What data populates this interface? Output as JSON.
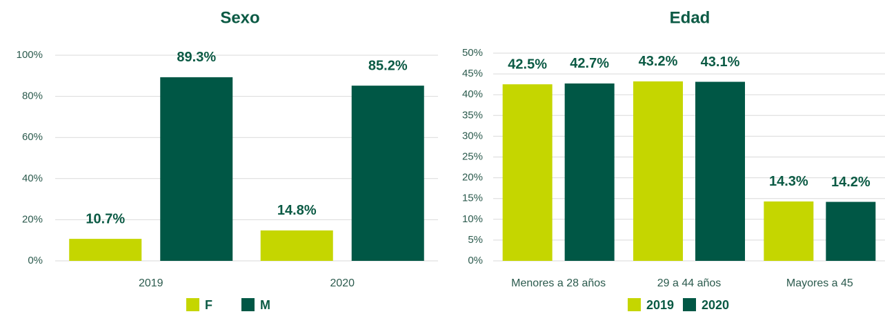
{
  "chart_data": [
    {
      "type": "bar",
      "title": "Sexo",
      "categories": [
        "2019",
        "2020"
      ],
      "series": [
        {
          "name": "F",
          "color": "#c5d600",
          "values": [
            10.7,
            14.8
          ],
          "value_labels": [
            "10.7%",
            "14.8%"
          ]
        },
        {
          "name": "M",
          "color": "#005745",
          "values": [
            89.3,
            85.2
          ],
          "value_labels": [
            "89.3%",
            "85.2%"
          ]
        }
      ],
      "ylim": [
        0,
        100
      ],
      "yticks": [
        {
          "value": 0,
          "label": "0%"
        },
        {
          "value": 20,
          "label": "20%"
        },
        {
          "value": 40,
          "label": "40%"
        },
        {
          "value": 60,
          "label": "60%"
        },
        {
          "value": 80,
          "label": "80%"
        },
        {
          "value": 100,
          "label": "100%"
        }
      ],
      "grid": true,
      "legend": "bottom"
    },
    {
      "type": "bar",
      "title": "Edad",
      "categories": [
        "Menores a 28 años",
        "29 a 44 años",
        "Mayores a 45"
      ],
      "series": [
        {
          "name": "2019",
          "color": "#c5d600",
          "values": [
            42.5,
            43.2,
            14.3
          ],
          "value_labels": [
            "42.5%",
            "43.2%",
            "14.3%"
          ]
        },
        {
          "name": "2020",
          "color": "#005745",
          "values": [
            42.7,
            43.1,
            14.2
          ],
          "value_labels": [
            "42.7%",
            "43.1%",
            "14.2%"
          ]
        }
      ],
      "ylim": [
        0,
        50
      ],
      "yticks": [
        {
          "value": 0,
          "label": "0%"
        },
        {
          "value": 5,
          "label": "5%"
        },
        {
          "value": 10,
          "label": "10%"
        },
        {
          "value": 15,
          "label": "15%"
        },
        {
          "value": 20,
          "label": "20%"
        },
        {
          "value": 25,
          "label": "25%"
        },
        {
          "value": 30,
          "label": "30%"
        },
        {
          "value": 35,
          "label": "35%"
        },
        {
          "value": 40,
          "label": "40%"
        },
        {
          "value": 45,
          "label": "45%"
        },
        {
          "value": 50,
          "label": "50%"
        }
      ],
      "grid": true,
      "legend": "bottom"
    }
  ]
}
